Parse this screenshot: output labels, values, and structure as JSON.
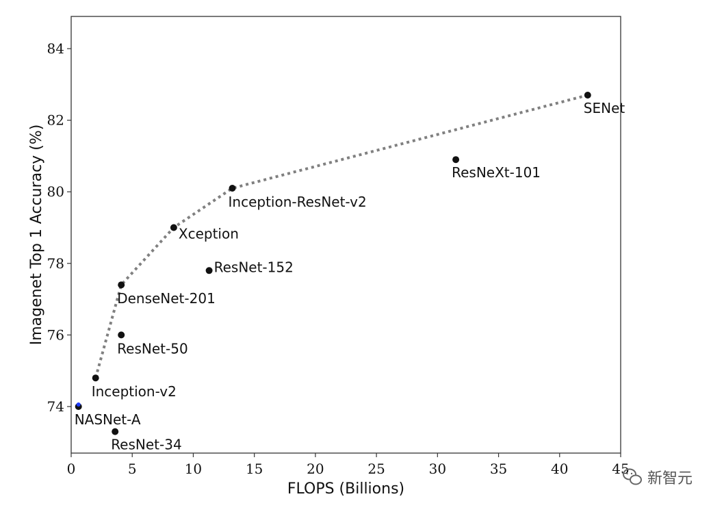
{
  "chart_data": {
    "type": "scatter",
    "xlabel": "FLOPS (Billions)",
    "ylabel": "Imagenet Top 1 Accuracy (%)",
    "xlim": [
      0,
      45
    ],
    "ylim": [
      72.7,
      84.9
    ],
    "x_ticks": [
      0,
      5,
      10,
      15,
      20,
      25,
      30,
      35,
      40,
      45
    ],
    "y_ticks": [
      74,
      76,
      78,
      80,
      82,
      84
    ],
    "grid": false,
    "points": [
      {
        "label": "NASNet-A",
        "x": 0.6,
        "y": 74.0,
        "color": "#111111",
        "accent": "#1f3cff"
      },
      {
        "label": "ResNet-34",
        "x": 3.6,
        "y": 73.3,
        "color": "#111111"
      },
      {
        "label": "Inception-v2",
        "x": 2.0,
        "y": 74.8,
        "color": "#111111"
      },
      {
        "label": "ResNet-50",
        "x": 4.1,
        "y": 76.0,
        "color": "#111111"
      },
      {
        "label": "DenseNet-201",
        "x": 4.1,
        "y": 77.4,
        "color": "#111111"
      },
      {
        "label": "ResNet-152",
        "x": 11.3,
        "y": 77.8,
        "color": "#111111"
      },
      {
        "label": "Xception",
        "x": 8.4,
        "y": 79.0,
        "color": "#111111"
      },
      {
        "label": "Inception-ResNet-v2",
        "x": 13.2,
        "y": 80.1,
        "color": "#111111"
      },
      {
        "label": "ResNeXt-101",
        "x": 31.5,
        "y": 80.9,
        "color": "#111111"
      },
      {
        "label": "SENet",
        "x": 42.3,
        "y": 82.7,
        "color": "#111111"
      }
    ],
    "frontier": {
      "style": "dotted",
      "color": "#808080",
      "points": [
        [
          2.0,
          74.8
        ],
        [
          4.1,
          77.4
        ],
        [
          8.4,
          79.0
        ],
        [
          13.2,
          80.1
        ],
        [
          42.3,
          82.7
        ]
      ]
    }
  },
  "watermark": {
    "text": "新智元",
    "icon": "wechat-icon"
  }
}
